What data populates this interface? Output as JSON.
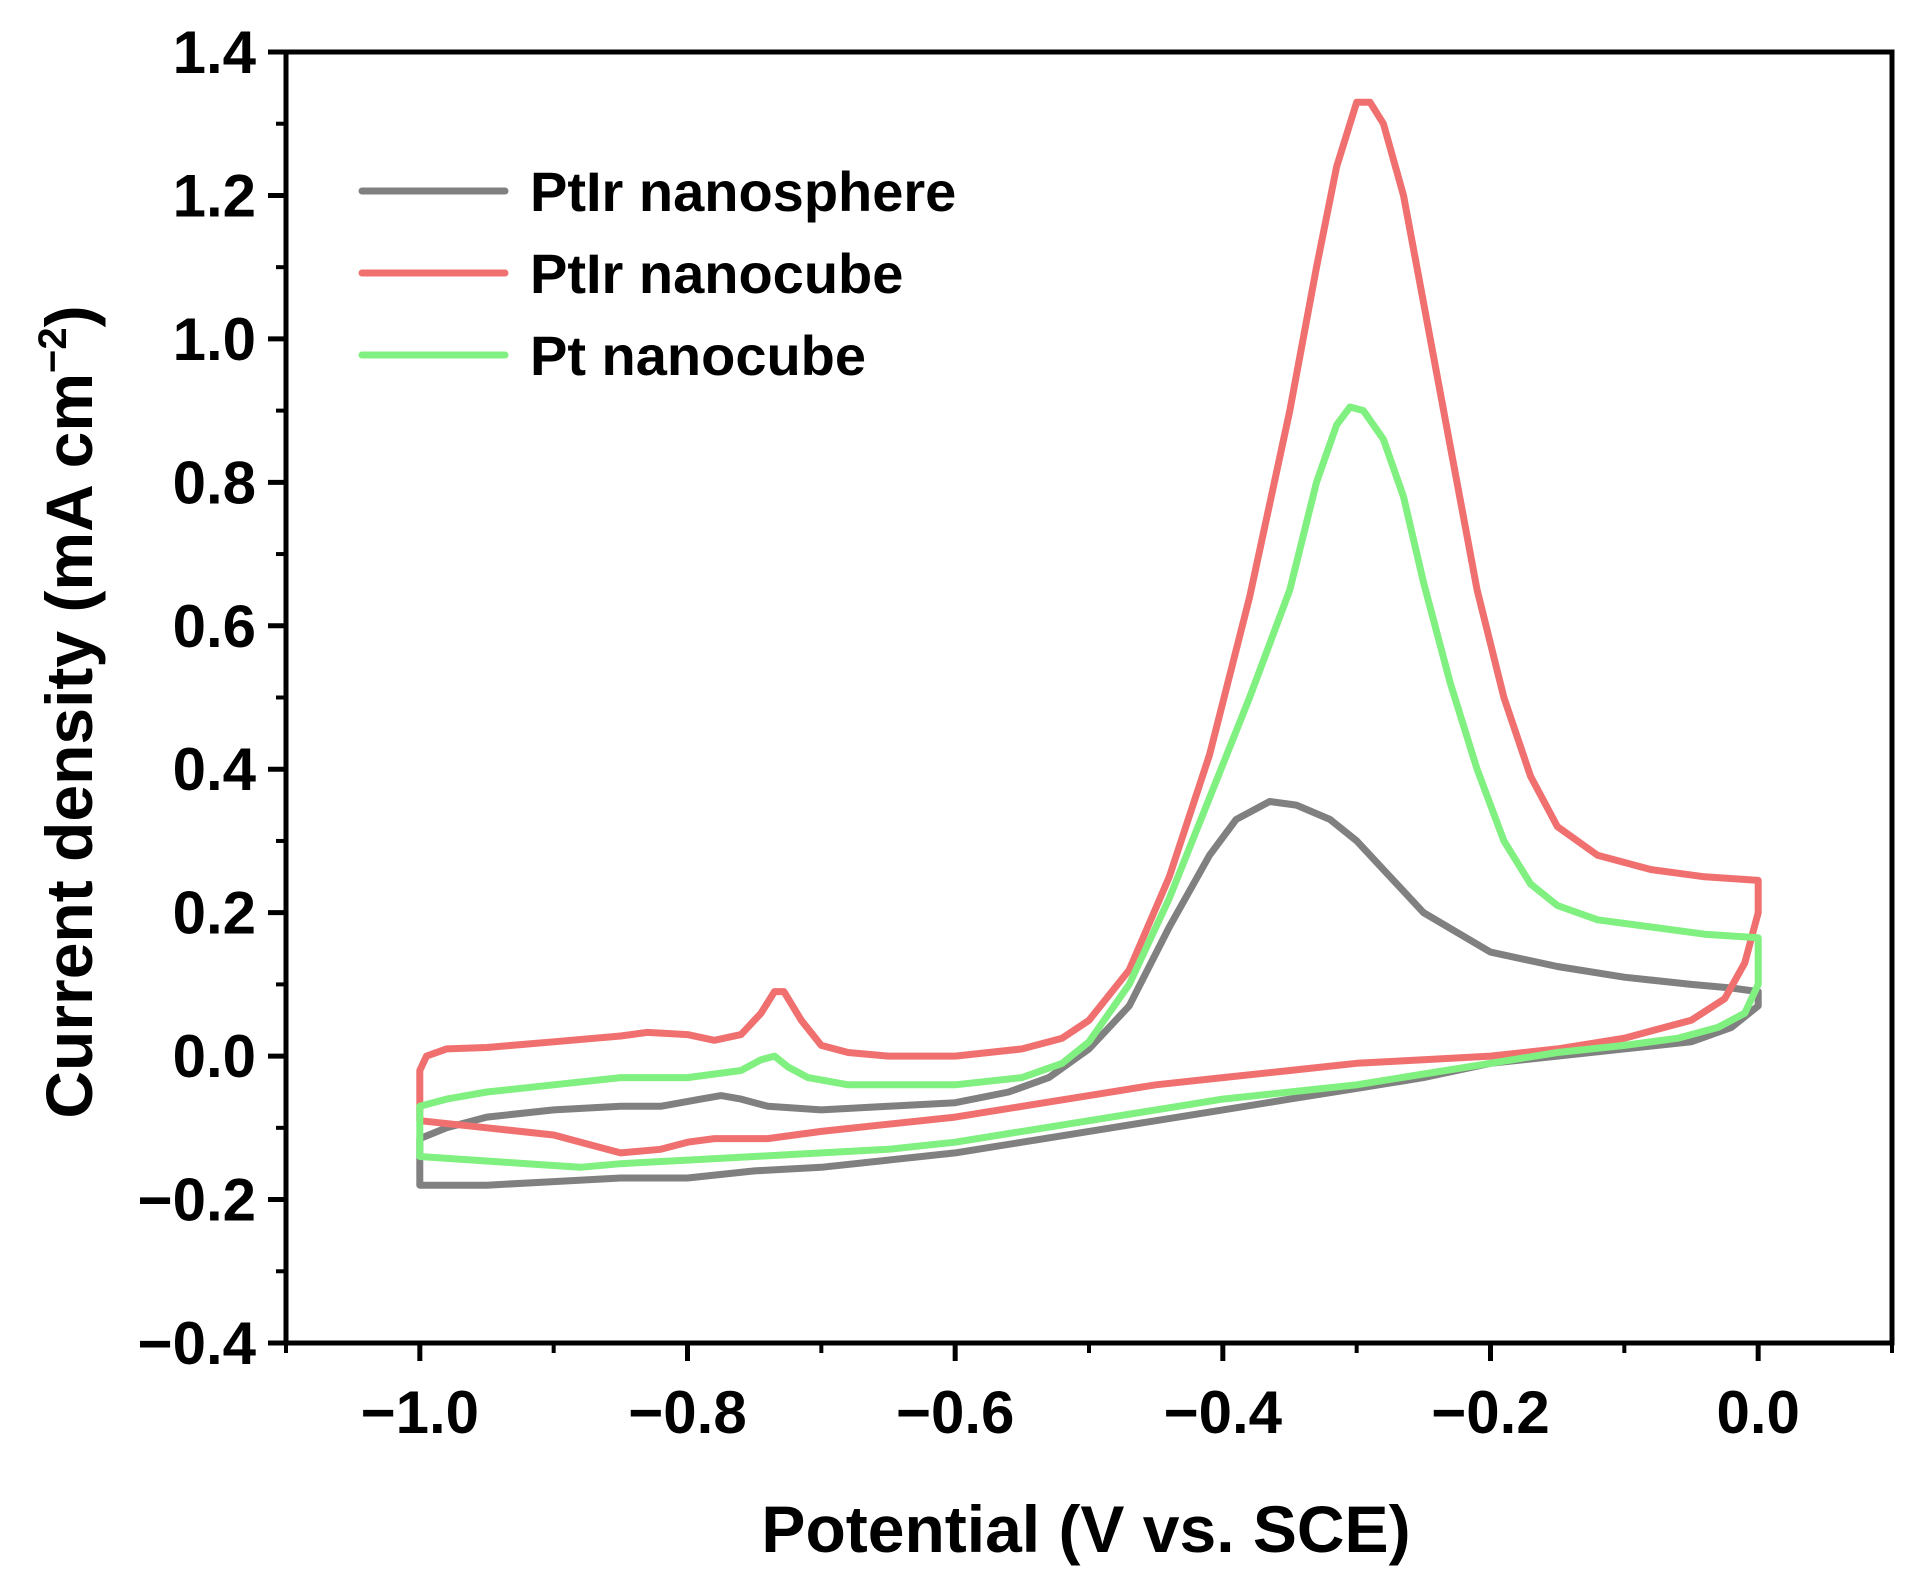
{
  "chart_data": {
    "type": "line",
    "title": "",
    "xlabel": "Potential (V vs. SCE)",
    "ylabel_main": "Current density (mA cm",
    "ylabel_sup": "−2",
    "ylabel_close": ")",
    "xlim": [
      -1.1,
      0.1
    ],
    "ylim": [
      -0.4,
      1.4
    ],
    "grid": false,
    "legend_position": "top-left",
    "x_ticks": [
      {
        "value": -1.0,
        "label": "−1.0"
      },
      {
        "value": -0.8,
        "label": "−0.8"
      },
      {
        "value": -0.6,
        "label": "−0.6"
      },
      {
        "value": -0.4,
        "label": "−0.4"
      },
      {
        "value": -0.2,
        "label": "−0.2"
      },
      {
        "value": 0.0,
        "label": "0.0"
      }
    ],
    "y_ticks": [
      {
        "value": 1.4,
        "label": "1.4"
      },
      {
        "value": 1.2,
        "label": "1.2"
      },
      {
        "value": 1.0,
        "label": "1.0"
      },
      {
        "value": 0.8,
        "label": "0.8"
      },
      {
        "value": 0.6,
        "label": "0.6"
      },
      {
        "value": 0.4,
        "label": "0.4"
      },
      {
        "value": 0.2,
        "label": "0.2"
      },
      {
        "value": 0.0,
        "label": "0.0"
      },
      {
        "value": -0.2,
        "label": "−0.2"
      },
      {
        "value": -0.4,
        "label": "−0.4"
      }
    ],
    "x_minor_ticks": [
      -1.1,
      -0.9,
      -0.7,
      -0.5,
      -0.3,
      -0.1,
      0.1
    ],
    "y_minor_ticks": [
      1.3,
      1.1,
      0.9,
      0.7,
      0.5,
      0.3,
      0.1,
      -0.1,
      -0.3
    ],
    "series": [
      {
        "name": "PtIr nanosphere",
        "color": "#808080",
        "points": [
          [
            -1.0,
            -0.18
          ],
          [
            -0.95,
            -0.18
          ],
          [
            -0.9,
            -0.175
          ],
          [
            -0.85,
            -0.17
          ],
          [
            -0.8,
            -0.17
          ],
          [
            -0.75,
            -0.16
          ],
          [
            -0.7,
            -0.155
          ],
          [
            -0.65,
            -0.145
          ],
          [
            -0.6,
            -0.135
          ],
          [
            -0.55,
            -0.12
          ],
          [
            -0.5,
            -0.105
          ],
          [
            -0.45,
            -0.09
          ],
          [
            -0.4,
            -0.075
          ],
          [
            -0.35,
            -0.06
          ],
          [
            -0.3,
            -0.045
          ],
          [
            -0.25,
            -0.03
          ],
          [
            -0.2,
            -0.01
          ],
          [
            -0.15,
            0.0
          ],
          [
            -0.1,
            0.01
          ],
          [
            -0.05,
            0.02
          ],
          [
            -0.02,
            0.04
          ],
          [
            0.0,
            0.07
          ],
          [
            0.0,
            0.09
          ],
          [
            -0.02,
            0.095
          ],
          [
            -0.05,
            0.1
          ],
          [
            -0.1,
            0.11
          ],
          [
            -0.15,
            0.125
          ],
          [
            -0.2,
            0.145
          ],
          [
            -0.25,
            0.2
          ],
          [
            -0.28,
            0.26
          ],
          [
            -0.3,
            0.3
          ],
          [
            -0.32,
            0.33
          ],
          [
            -0.345,
            0.35
          ],
          [
            -0.365,
            0.355
          ],
          [
            -0.39,
            0.33
          ],
          [
            -0.41,
            0.28
          ],
          [
            -0.44,
            0.18
          ],
          [
            -0.47,
            0.07
          ],
          [
            -0.5,
            0.01
          ],
          [
            -0.53,
            -0.03
          ],
          [
            -0.56,
            -0.05
          ],
          [
            -0.6,
            -0.065
          ],
          [
            -0.65,
            -0.07
          ],
          [
            -0.7,
            -0.075
          ],
          [
            -0.74,
            -0.07
          ],
          [
            -0.76,
            -0.06
          ],
          [
            -0.775,
            -0.055
          ],
          [
            -0.79,
            -0.06
          ],
          [
            -0.82,
            -0.07
          ],
          [
            -0.85,
            -0.07
          ],
          [
            -0.9,
            -0.075
          ],
          [
            -0.95,
            -0.085
          ],
          [
            -0.98,
            -0.1
          ],
          [
            -1.0,
            -0.115
          ],
          [
            -1.0,
            -0.18
          ]
        ]
      },
      {
        "name": "PtIr nanocube",
        "color": "#f07070",
        "points": [
          [
            -1.0,
            -0.02
          ],
          [
            -0.995,
            0.0
          ],
          [
            -0.98,
            0.01
          ],
          [
            -0.95,
            0.012
          ],
          [
            -0.9,
            0.02
          ],
          [
            -0.85,
            0.028
          ],
          [
            -0.83,
            0.033
          ],
          [
            -0.8,
            0.03
          ],
          [
            -0.78,
            0.022
          ],
          [
            -0.76,
            0.03
          ],
          [
            -0.745,
            0.06
          ],
          [
            -0.735,
            0.09
          ],
          [
            -0.728,
            0.09
          ],
          [
            -0.715,
            0.05
          ],
          [
            -0.7,
            0.015
          ],
          [
            -0.68,
            0.005
          ],
          [
            -0.65,
            0.0
          ],
          [
            -0.6,
            0.0
          ],
          [
            -0.55,
            0.01
          ],
          [
            -0.52,
            0.025
          ],
          [
            -0.5,
            0.05
          ],
          [
            -0.47,
            0.12
          ],
          [
            -0.44,
            0.25
          ],
          [
            -0.41,
            0.42
          ],
          [
            -0.38,
            0.64
          ],
          [
            -0.35,
            0.9
          ],
          [
            -0.33,
            1.1
          ],
          [
            -0.315,
            1.24
          ],
          [
            -0.305,
            1.3
          ],
          [
            -0.3,
            1.33
          ],
          [
            -0.29,
            1.33
          ],
          [
            -0.28,
            1.3
          ],
          [
            -0.265,
            1.2
          ],
          [
            -0.25,
            1.05
          ],
          [
            -0.23,
            0.85
          ],
          [
            -0.21,
            0.65
          ],
          [
            -0.19,
            0.5
          ],
          [
            -0.17,
            0.39
          ],
          [
            -0.15,
            0.32
          ],
          [
            -0.12,
            0.28
          ],
          [
            -0.08,
            0.26
          ],
          [
            -0.04,
            0.25
          ],
          [
            0.0,
            0.245
          ],
          [
            0.0,
            0.2
          ],
          [
            -0.01,
            0.13
          ],
          [
            -0.025,
            0.08
          ],
          [
            -0.05,
            0.05
          ],
          [
            -0.1,
            0.025
          ],
          [
            -0.15,
            0.01
          ],
          [
            -0.2,
            0.0
          ],
          [
            -0.25,
            -0.005
          ],
          [
            -0.3,
            -0.01
          ],
          [
            -0.35,
            -0.02
          ],
          [
            -0.4,
            -0.03
          ],
          [
            -0.45,
            -0.04
          ],
          [
            -0.5,
            -0.055
          ],
          [
            -0.55,
            -0.07
          ],
          [
            -0.6,
            -0.085
          ],
          [
            -0.65,
            -0.095
          ],
          [
            -0.7,
            -0.105
          ],
          [
            -0.74,
            -0.115
          ],
          [
            -0.78,
            -0.115
          ],
          [
            -0.8,
            -0.12
          ],
          [
            -0.82,
            -0.13
          ],
          [
            -0.85,
            -0.135
          ],
          [
            -0.87,
            -0.125
          ],
          [
            -0.9,
            -0.11
          ],
          [
            -0.95,
            -0.1
          ],
          [
            -1.0,
            -0.09
          ],
          [
            -1.0,
            -0.02
          ]
        ]
      },
      {
        "name": "Pt nanocube",
        "color": "#80f080",
        "points": [
          [
            -1.0,
            -0.07
          ],
          [
            -0.98,
            -0.06
          ],
          [
            -0.95,
            -0.05
          ],
          [
            -0.9,
            -0.04
          ],
          [
            -0.85,
            -0.03
          ],
          [
            -0.8,
            -0.03
          ],
          [
            -0.76,
            -0.02
          ],
          [
            -0.745,
            -0.005
          ],
          [
            -0.735,
            0.0
          ],
          [
            -0.725,
            -0.015
          ],
          [
            -0.71,
            -0.03
          ],
          [
            -0.68,
            -0.04
          ],
          [
            -0.6,
            -0.04
          ],
          [
            -0.55,
            -0.03
          ],
          [
            -0.52,
            -0.01
          ],
          [
            -0.5,
            0.02
          ],
          [
            -0.47,
            0.1
          ],
          [
            -0.44,
            0.22
          ],
          [
            -0.41,
            0.36
          ],
          [
            -0.38,
            0.5
          ],
          [
            -0.35,
            0.65
          ],
          [
            -0.33,
            0.8
          ],
          [
            -0.315,
            0.88
          ],
          [
            -0.305,
            0.905
          ],
          [
            -0.295,
            0.9
          ],
          [
            -0.28,
            0.86
          ],
          [
            -0.265,
            0.78
          ],
          [
            -0.25,
            0.66
          ],
          [
            -0.23,
            0.52
          ],
          [
            -0.21,
            0.4
          ],
          [
            -0.19,
            0.3
          ],
          [
            -0.17,
            0.24
          ],
          [
            -0.15,
            0.21
          ],
          [
            -0.12,
            0.19
          ],
          [
            -0.08,
            0.18
          ],
          [
            -0.04,
            0.17
          ],
          [
            0.0,
            0.165
          ],
          [
            0.0,
            0.1
          ],
          [
            -0.01,
            0.06
          ],
          [
            -0.03,
            0.04
          ],
          [
            -0.06,
            0.025
          ],
          [
            -0.1,
            0.015
          ],
          [
            -0.15,
            0.005
          ],
          [
            -0.2,
            -0.01
          ],
          [
            -0.25,
            -0.025
          ],
          [
            -0.3,
            -0.04
          ],
          [
            -0.35,
            -0.05
          ],
          [
            -0.4,
            -0.06
          ],
          [
            -0.45,
            -0.075
          ],
          [
            -0.5,
            -0.09
          ],
          [
            -0.55,
            -0.105
          ],
          [
            -0.6,
            -0.12
          ],
          [
            -0.65,
            -0.13
          ],
          [
            -0.7,
            -0.135
          ],
          [
            -0.75,
            -0.14
          ],
          [
            -0.8,
            -0.145
          ],
          [
            -0.85,
            -0.15
          ],
          [
            -0.88,
            -0.155
          ],
          [
            -0.92,
            -0.15
          ],
          [
            -0.96,
            -0.145
          ],
          [
            -1.0,
            -0.14
          ],
          [
            -1.0,
            -0.07
          ]
        ]
      }
    ]
  }
}
